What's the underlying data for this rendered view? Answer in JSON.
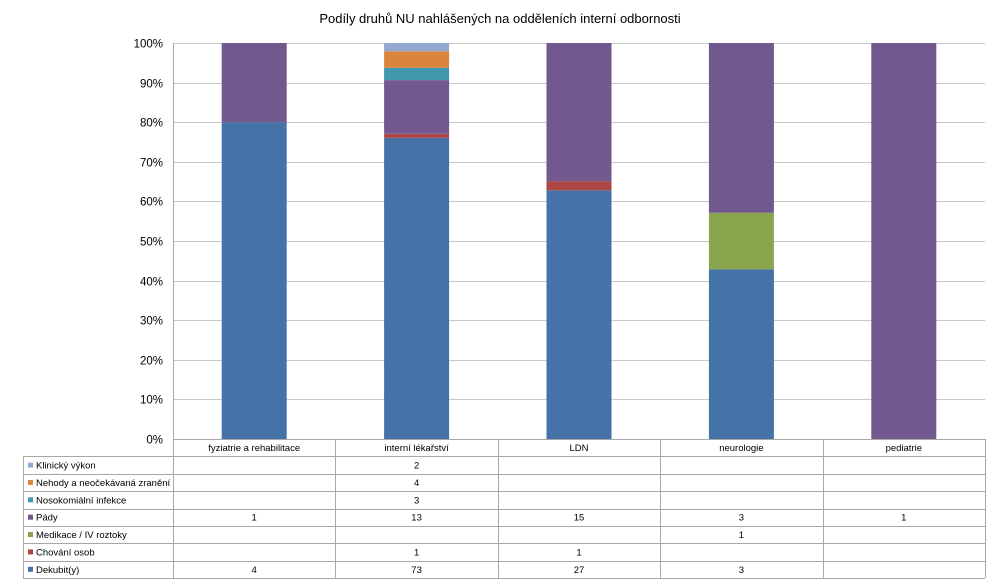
{
  "chart_data": {
    "type": "bar",
    "stacked": "percent",
    "title": "Podíly druhů NU  nahlášených na odděleních interní odbornosti",
    "xlabel": "",
    "ylabel": "",
    "ylim": [
      0,
      100
    ],
    "ytick_labels": [
      "0%",
      "10%",
      "20%",
      "30%",
      "40%",
      "50%",
      "60%",
      "70%",
      "80%",
      "90%",
      "100%"
    ],
    "grid": true,
    "legend": "data-table",
    "categories": [
      "fyziatrie a rehabilitace",
      "interní lékařství",
      "LDN",
      "neurologie",
      "pediatrie"
    ],
    "series": [
      {
        "name": "Dekubit(y)",
        "color": "#4572A7",
        "values": [
          4,
          73,
          27,
          3,
          null
        ]
      },
      {
        "name": "Chování osob",
        "color": "#AA4643",
        "values": [
          null,
          1,
          1,
          null,
          null
        ]
      },
      {
        "name": "Medikace / IV roztoky",
        "color": "#89A54E",
        "values": [
          null,
          null,
          null,
          1,
          null
        ]
      },
      {
        "name": "Pády",
        "color": "#71588F",
        "values": [
          1,
          13,
          15,
          3,
          1
        ]
      },
      {
        "name": "Nosokomiální infekce",
        "color": "#4198AF",
        "values": [
          null,
          3,
          null,
          null,
          null
        ]
      },
      {
        "name": "Nehody a neočekávaná zranění",
        "color": "#DB843D",
        "values": [
          null,
          4,
          null,
          null,
          null
        ]
      },
      {
        "name": "Klinický výkon",
        "color": "#93A9CF",
        "values": [
          null,
          2,
          null,
          null,
          null
        ]
      }
    ],
    "table_row_order": [
      "Klinický výkon",
      "Nehody a neočekávaná zranění",
      "Nosokomiální infekce",
      "Pády",
      "Medikace / IV roztoky",
      "Chování osob",
      "Dekubit(y)"
    ]
  }
}
